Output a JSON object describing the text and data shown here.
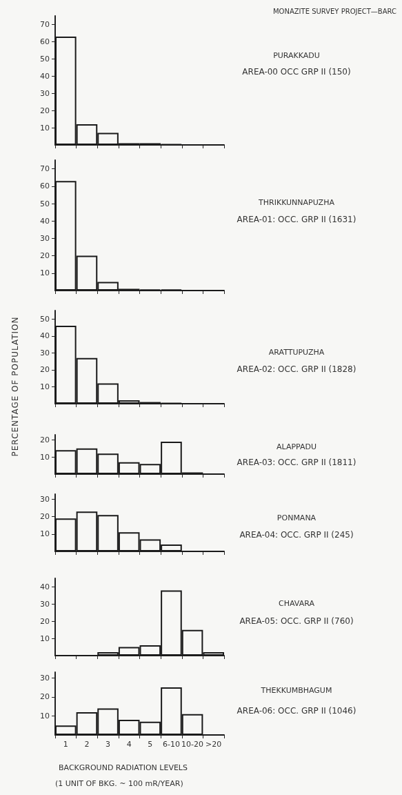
{
  "chart_data": [
    {
      "type": "bar",
      "annotations": [
        "MONAZITE SURVEY PROJECT—BARC",
        "PURAKKADU",
        "AREA-00 OCC GRP II (150)"
      ],
      "categories": [
        null,
        null,
        null,
        null,
        null,
        null,
        null,
        null
      ],
      "series": [
        {
          "color": "#1a1a1a",
          "values": [
            63,
            12,
            7,
            1,
            1,
            0.5,
            0,
            0
          ]
        }
      ],
      "ylim": [
        0,
        75
      ],
      "yticks": [
        10,
        20,
        30,
        40,
        50,
        60,
        70
      ],
      "grid": false
    },
    {
      "type": "bar",
      "annotations": [
        "THRIKKUNNAPUZHA",
        "AREA-01: OCC. GRP II (1631)"
      ],
      "categories": [
        null,
        null,
        null,
        null,
        null,
        null,
        null,
        null
      ],
      "series": [
        {
          "color": "#1a1a1a",
          "values": [
            63,
            20,
            5,
            1,
            0.5,
            0.5,
            0,
            0
          ]
        }
      ],
      "ylim": [
        0,
        75
      ],
      "yticks": [
        10,
        20,
        30,
        40,
        50,
        60,
        70
      ],
      "grid": false
    },
    {
      "type": "bar",
      "annotations": [
        "ARATTUPUZHA",
        "AREA-02: OCC. GRP II (1828)"
      ],
      "categories": [
        null,
        null,
        null,
        null,
        null,
        null,
        null,
        null
      ],
      "series": [
        {
          "color": "#1a1a1a",
          "values": [
            46,
            27,
            12,
            2,
            1,
            0.5,
            0,
            0
          ]
        }
      ],
      "ylim": [
        0,
        55
      ],
      "yticks": [
        10,
        20,
        30,
        40,
        50
      ],
      "grid": false
    },
    {
      "type": "bar",
      "annotations": [
        "ALAPPADU",
        "AREA-03: OCC. GRP II (1811)"
      ],
      "ylabel": "PERCENTAGE OF POPULATION",
      "categories": [
        null,
        null,
        null,
        null,
        null,
        null,
        null,
        null
      ],
      "series": [
        {
          "color": "#1a1a1a",
          "values": [
            14,
            15,
            12,
            7,
            6,
            19,
            1,
            0
          ]
        }
      ],
      "ylim": [
        0,
        23
      ],
      "yticks": [
        10,
        20
      ],
      "grid": false
    },
    {
      "type": "bar",
      "annotations": [
        "PONMANA",
        "AREA-04: OCC. GRP II (245)"
      ],
      "categories": [
        null,
        null,
        null,
        null,
        null,
        null,
        null,
        null
      ],
      "series": [
        {
          "color": "#1a1a1a",
          "values": [
            19,
            23,
            21,
            11,
            7,
            4,
            0,
            0
          ]
        }
      ],
      "ylim": [
        0,
        33
      ],
      "yticks": [
        10,
        20,
        30
      ],
      "grid": false
    },
    {
      "type": "bar",
      "annotations": [
        "CHAVARA",
        "AREA-05: OCC. GRP II (760)"
      ],
      "categories": [
        null,
        null,
        null,
        null,
        null,
        null,
        null,
        null
      ],
      "series": [
        {
          "color": "#1a1a1a",
          "values": [
            0,
            0,
            2,
            5,
            6,
            38,
            15,
            2
          ]
        }
      ],
      "ylim": [
        0,
        45
      ],
      "yticks": [
        10,
        20,
        30,
        40
      ],
      "grid": false
    },
    {
      "type": "bar",
      "annotations": [
        "THEKKUMBHAGUM",
        "AREA-06: OCC. GRP II (1046)",
        "(1 UNIT OF BKG. ~ 100 mR/YEAR)"
      ],
      "xlabel": "BACKGROUND RADIATION LEVELS",
      "categories": [
        "1",
        "2",
        "3",
        "4",
        "5",
        "6-10",
        "10-20",
        ">20"
      ],
      "series": [
        {
          "color": "#1a1a1a",
          "values": [
            5,
            12,
            14,
            8,
            7,
            25,
            11,
            0
          ]
        }
      ],
      "ylim": [
        0,
        33
      ],
      "yticks": [
        10,
        20,
        30
      ],
      "grid": false
    }
  ]
}
